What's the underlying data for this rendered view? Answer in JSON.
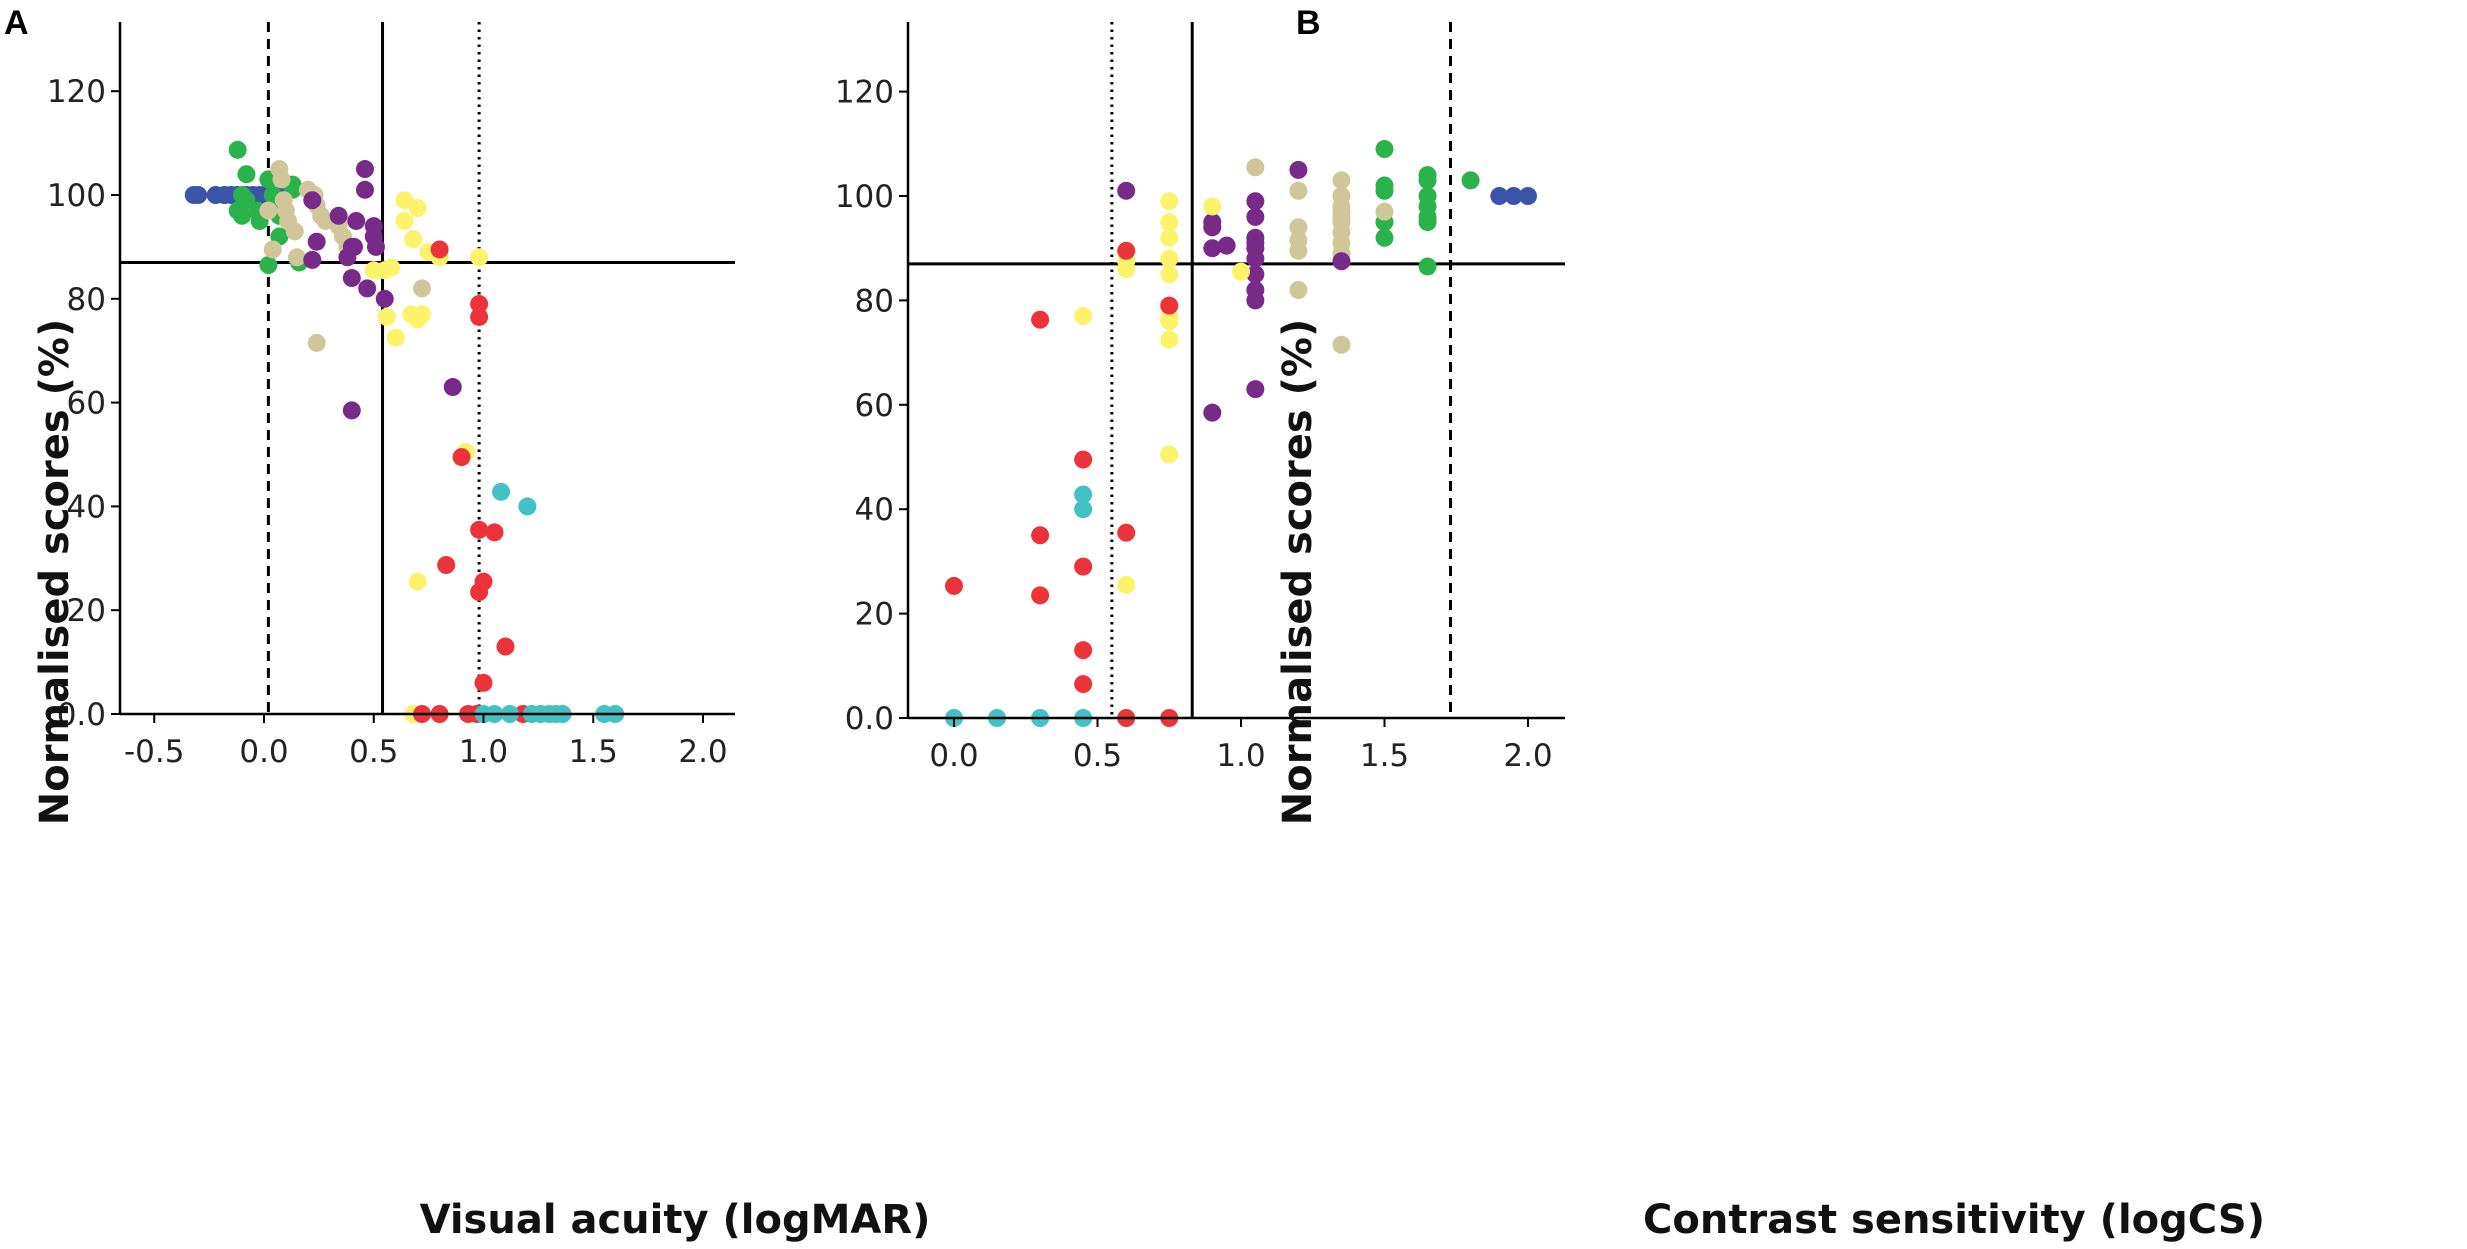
{
  "colors": {
    "blue": "#3a55a8",
    "green": "#2ab34a",
    "beige": "#cfc79a",
    "purple": "#772a87",
    "yellow": "#fbf46a",
    "red": "#ec3339",
    "cyan": "#44c1c4",
    "axis": "#000000"
  },
  "chart_data": [
    {
      "panel": "A",
      "type": "scatter",
      "xlabel": "Visual acuity (logMAR)",
      "ylabel": "Normalised scores (%)",
      "xlim": [
        -0.6,
        2.15
      ],
      "ylim": [
        0,
        132
      ],
      "x_ticks": [
        -0.5,
        0.0,
        0.5,
        1.0,
        1.5,
        2.0
      ],
      "x_tick_labels": [
        "-0.5",
        "0.0",
        "0.5",
        "1.0",
        "1.5",
        "2.0"
      ],
      "y_ticks": [
        0,
        20,
        40,
        60,
        80,
        100,
        120
      ],
      "y_tick_labels": [
        "0.0",
        "20",
        "40",
        "60",
        "80",
        "100",
        "120"
      ],
      "reference_lines": [
        {
          "orientation": "vertical",
          "value": 0.02,
          "style": "dashed"
        },
        {
          "orientation": "vertical",
          "value": 0.54,
          "style": "solid"
        },
        {
          "orientation": "vertical",
          "value": 0.98,
          "style": "dotted"
        },
        {
          "orientation": "horizontal",
          "value": 87,
          "style": "solid"
        }
      ],
      "series": [
        {
          "name": "blue",
          "color": "#3a55a8",
          "points": [
            [
              -0.32,
              100
            ],
            [
              -0.3,
              100
            ],
            [
              -0.22,
              100
            ],
            [
              -0.18,
              100
            ],
            [
              -0.15,
              100
            ],
            [
              -0.12,
              100
            ],
            [
              -0.08,
              100
            ],
            [
              -0.05,
              100
            ],
            [
              -0.02,
              100
            ],
            [
              0.0,
              100
            ],
            [
              0.08,
              100
            ]
          ]
        },
        {
          "name": "green",
          "color": "#2ab34a",
          "points": [
            [
              -0.12,
              108.7
            ],
            [
              -0.08,
              104
            ],
            [
              -0.1,
              100
            ],
            [
              -0.08,
              99
            ],
            [
              -0.12,
              97
            ],
            [
              -0.1,
              96
            ],
            [
              -0.03,
              97
            ],
            [
              -0.02,
              95
            ],
            [
              0.02,
              103
            ],
            [
              0.04,
              100
            ],
            [
              0.06,
              98
            ],
            [
              0.07,
              96
            ],
            [
              0.07,
              92
            ],
            [
              0.13,
              102
            ],
            [
              0.13,
              101
            ],
            [
              0.16,
              87
            ],
            [
              0.02,
              86.5
            ]
          ]
        },
        {
          "name": "beige",
          "color": "#cfc79a",
          "points": [
            [
              0.07,
              105
            ],
            [
              0.08,
              103
            ],
            [
              0.09,
              99
            ],
            [
              0.1,
              97
            ],
            [
              0.11,
              95
            ],
            [
              0.14,
              93
            ],
            [
              0.2,
              101
            ],
            [
              0.23,
              100
            ],
            [
              0.24,
              98
            ],
            [
              0.26,
              96
            ],
            [
              0.28,
              95
            ],
            [
              0.34,
              94
            ],
            [
              0.36,
              92
            ],
            [
              0.38,
              90
            ],
            [
              0.15,
              88
            ],
            [
              0.04,
              89.5
            ],
            [
              0.02,
              97
            ],
            [
              0.24,
              71.5
            ],
            [
              0.72,
              82
            ]
          ]
        },
        {
          "name": "purple",
          "color": "#772a87",
          "points": [
            [
              0.46,
              105
            ],
            [
              0.46,
              101
            ],
            [
              0.22,
              99
            ],
            [
              0.24,
              91
            ],
            [
              0.34,
              96
            ],
            [
              0.38,
              88
            ],
            [
              0.4,
              90
            ],
            [
              0.42,
              95
            ],
            [
              0.41,
              90
            ],
            [
              0.5,
              94
            ],
            [
              0.5,
              92
            ],
            [
              0.51,
              90
            ],
            [
              0.47,
              82
            ],
            [
              0.4,
              84
            ],
            [
              0.55,
              80
            ],
            [
              0.22,
              87.5
            ],
            [
              0.86,
              63
            ],
            [
              0.4,
              58.5
            ]
          ]
        },
        {
          "name": "yellow",
          "color": "#fbf46a",
          "points": [
            [
              0.64,
              99
            ],
            [
              0.7,
              97.5
            ],
            [
              0.64,
              95
            ],
            [
              0.68,
              91.5
            ],
            [
              0.75,
              89
            ],
            [
              0.8,
              88
            ],
            [
              0.98,
              88
            ],
            [
              0.5,
              85.5
            ],
            [
              0.55,
              85.5
            ],
            [
              0.58,
              86
            ],
            [
              0.56,
              76.5
            ],
            [
              0.67,
              77
            ],
            [
              0.7,
              76
            ],
            [
              0.72,
              77
            ],
            [
              0.6,
              72.5
            ],
            [
              0.92,
              50.5
            ],
            [
              0.7,
              25.5
            ],
            [
              0.68,
              0
            ]
          ]
        },
        {
          "name": "red",
          "color": "#ec3339",
          "points": [
            [
              0.8,
              89.5
            ],
            [
              0.98,
              79
            ],
            [
              0.98,
              76.5
            ],
            [
              0.9,
              49.5
            ],
            [
              0.98,
              35.5
            ],
            [
              1.05,
              35
            ],
            [
              0.83,
              28.7
            ],
            [
              1.0,
              25.5
            ],
            [
              0.98,
              23.5
            ],
            [
              1.1,
              13
            ],
            [
              1.0,
              6
            ],
            [
              0.72,
              0
            ],
            [
              0.8,
              0
            ],
            [
              0.93,
              0
            ],
            [
              0.97,
              0
            ],
            [
              1.18,
              0
            ]
          ]
        },
        {
          "name": "cyan",
          "color": "#44c1c4",
          "points": [
            [
              1.08,
              42.8
            ],
            [
              1.2,
              40
            ],
            [
              1.0,
              0
            ],
            [
              1.05,
              0
            ],
            [
              1.12,
              0
            ],
            [
              1.22,
              0
            ],
            [
              1.26,
              0
            ],
            [
              1.3,
              0
            ],
            [
              1.33,
              0
            ],
            [
              1.36,
              0
            ],
            [
              1.55,
              0
            ],
            [
              1.6,
              0
            ]
          ]
        }
      ]
    },
    {
      "panel": "B",
      "type": "scatter",
      "xlabel": "Contrast sensitivity (logCS)",
      "ylabel": "Normalised scores (%)",
      "xlim": [
        -0.15,
        2.15
      ],
      "ylim": [
        0,
        132
      ],
      "x_ticks": [
        0.0,
        0.5,
        1.0,
        1.5,
        2.0
      ],
      "x_tick_labels": [
        "0.0",
        "0.5",
        "1.0",
        "1.5",
        "2.0"
      ],
      "y_ticks": [
        0,
        20,
        40,
        60,
        80,
        100,
        120
      ],
      "y_tick_labels": [
        "0.0",
        "20",
        "40",
        "60",
        "80",
        "100",
        "120"
      ],
      "reference_lines": [
        {
          "orientation": "vertical",
          "value": 0.55,
          "style": "dotted"
        },
        {
          "orientation": "vertical",
          "value": 0.83,
          "style": "solid"
        },
        {
          "orientation": "vertical",
          "value": 1.73,
          "style": "dashed"
        },
        {
          "orientation": "horizontal",
          "value": 87,
          "style": "solid"
        }
      ],
      "series": [
        {
          "name": "blue",
          "color": "#3a55a8",
          "points": [
            [
              1.9,
              100
            ],
            [
              1.95,
              100
            ],
            [
              2.0,
              100
            ]
          ]
        },
        {
          "name": "green",
          "color": "#2ab34a",
          "points": [
            [
              1.5,
              109
            ],
            [
              1.5,
              102
            ],
            [
              1.5,
              101
            ],
            [
              1.5,
              95
            ],
            [
              1.5,
              92
            ],
            [
              1.65,
              104
            ],
            [
              1.65,
              103
            ],
            [
              1.65,
              100
            ],
            [
              1.65,
              98
            ],
            [
              1.65,
              96
            ],
            [
              1.65,
              95
            ],
            [
              1.65,
              86.5
            ],
            [
              1.8,
              103
            ]
          ]
        },
        {
          "name": "beige",
          "color": "#cfc79a",
          "points": [
            [
              1.05,
              105.5
            ],
            [
              1.2,
              101
            ],
            [
              1.2,
              94
            ],
            [
              1.2,
              91.5
            ],
            [
              1.2,
              89.5
            ],
            [
              1.2,
              82
            ],
            [
              1.35,
              103
            ],
            [
              1.35,
              100
            ],
            [
              1.35,
              98
            ],
            [
              1.35,
              97
            ],
            [
              1.35,
              96
            ],
            [
              1.35,
              95
            ],
            [
              1.35,
              93
            ],
            [
              1.35,
              91
            ],
            [
              1.35,
              89
            ],
            [
              1.35,
              71.5
            ],
            [
              1.5,
              97
            ]
          ]
        },
        {
          "name": "purple",
          "color": "#772a87",
          "points": [
            [
              0.6,
              101
            ],
            [
              0.9,
              95
            ],
            [
              0.9,
              94
            ],
            [
              0.9,
              90
            ],
            [
              0.95,
              90.5
            ],
            [
              1.05,
              99
            ],
            [
              1.05,
              96
            ],
            [
              1.05,
              92
            ],
            [
              1.05,
              91
            ],
            [
              1.05,
              90
            ],
            [
              1.05,
              88
            ],
            [
              1.05,
              85
            ],
            [
              1.05,
              82
            ],
            [
              1.05,
              80
            ],
            [
              1.05,
              63
            ],
            [
              1.2,
              105
            ],
            [
              1.35,
              87.5
            ],
            [
              0.9,
              58.5
            ]
          ]
        },
        {
          "name": "yellow",
          "color": "#fbf46a",
          "points": [
            [
              0.75,
              99
            ],
            [
              0.75,
              95
            ],
            [
              0.75,
              92
            ],
            [
              0.75,
              88
            ],
            [
              0.75,
              85
            ],
            [
              0.75,
              77
            ],
            [
              0.75,
              76
            ],
            [
              0.75,
              72.5
            ],
            [
              0.75,
              50.5
            ],
            [
              0.6,
              87.5
            ],
            [
              0.6,
              86
            ],
            [
              0.45,
              77
            ],
            [
              0.6,
              25.5
            ],
            [
              0.9,
              98
            ],
            [
              1.0,
              85.5
            ]
          ]
        },
        {
          "name": "red",
          "color": "#ec3339",
          "points": [
            [
              0.6,
              89.5
            ],
            [
              0.75,
              79
            ],
            [
              0.3,
              76.3
            ],
            [
              0.45,
              49.5
            ],
            [
              0.3,
              35
            ],
            [
              0.6,
              35.5
            ],
            [
              0.45,
              29
            ],
            [
              0.0,
              25.3
            ],
            [
              0.3,
              23.5
            ],
            [
              0.45,
              13
            ],
            [
              0.45,
              6.5
            ],
            [
              0.6,
              0
            ],
            [
              0.75,
              0
            ]
          ]
        },
        {
          "name": "cyan",
          "color": "#44c1c4",
          "points": [
            [
              0.45,
              42.8
            ],
            [
              0.45,
              40
            ],
            [
              0.0,
              0
            ],
            [
              0.15,
              0
            ],
            [
              0.3,
              0
            ],
            [
              0.45,
              0
            ]
          ]
        }
      ]
    }
  ]
}
